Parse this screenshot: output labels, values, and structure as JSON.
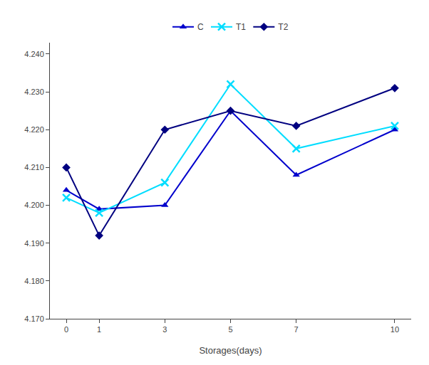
{
  "chart_data": {
    "type": "line",
    "x_label": "Storages(days)",
    "x": [
      0,
      1,
      3,
      5,
      7,
      10
    ],
    "series": [
      {
        "name": "C",
        "color": "#0000CC",
        "marker": "triangle",
        "values": [
          4.204,
          4.199,
          4.2,
          4.225,
          4.208,
          4.22
        ]
      },
      {
        "name": "T1",
        "color": "#00DDFF",
        "marker": "x",
        "values": [
          4.202,
          4.198,
          4.206,
          4.232,
          4.215,
          4.221
        ]
      },
      {
        "name": "T2",
        "color": "#000080",
        "marker": "diamond",
        "values": [
          4.21,
          4.192,
          4.22,
          4.225,
          4.221,
          4.231
        ]
      }
    ],
    "xlim": [
      -0.5,
      10.5
    ],
    "xticks": [
      0,
      1,
      3,
      5,
      7,
      10
    ],
    "ylim": [
      4.17,
      4.243
    ],
    "yticks": [
      {
        "value": 4.17,
        "label": "4.170"
      },
      {
        "value": 4.18,
        "label": "4.180"
      },
      {
        "value": 4.19,
        "label": "4.190"
      },
      {
        "value": 4.2,
        "label": "4.200"
      },
      {
        "value": 4.21,
        "label": "4.210"
      },
      {
        "value": 4.22,
        "label": "4.220"
      },
      {
        "value": 4.23,
        "label": "4.230"
      },
      {
        "value": 4.24,
        "label": "4.240"
      }
    ],
    "grid": false,
    "legend": "top"
  }
}
